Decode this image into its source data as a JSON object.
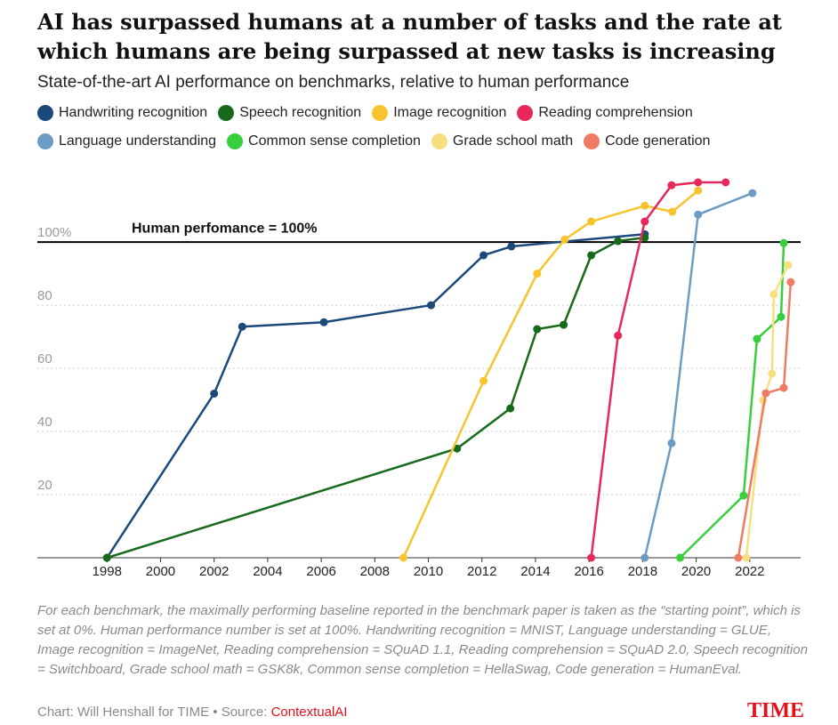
{
  "chart_data": {
    "type": "line",
    "title": "AI has surpassed humans at a number of tasks and the rate at which humans are being surpassed at new tasks is increasing",
    "subtitle": "State-of-the-art AI performance on benchmarks, relative to human performance",
    "xlim": [
      1995.4,
      2023.9
    ],
    "xticks": [
      1998,
      2000,
      2002,
      2004,
      2006,
      2008,
      2010,
      2012,
      2014,
      2016,
      2018,
      2020,
      2022
    ],
    "ylim": [
      0,
      122
    ],
    "yticks": [
      20,
      40,
      60,
      80,
      {
        "value": 100,
        "label": "100%"
      }
    ],
    "grid": true,
    "reference_line": {
      "value": 100,
      "label": "Human perfomance = 100%"
    },
    "series": [
      {
        "name": "Handwriting recognition",
        "color": "#1b4a7a",
        "x": [
          1998,
          2002,
          2003.05,
          2006.1,
          2010.1,
          2012.06,
          2013.1,
          2018.08
        ],
        "values": [
          0,
          52,
          73.2,
          74.6,
          80,
          95.8,
          98.6,
          102.5
        ]
      },
      {
        "name": "Speech recognition",
        "color": "#17691c",
        "x": [
          1998,
          2011.07,
          2013.06,
          2014.06,
          2015.05,
          2016.08,
          2017.08,
          2018.08
        ],
        "values": [
          0,
          34.6,
          47.3,
          72.4,
          73.8,
          95.8,
          100.3,
          101.4
        ]
      },
      {
        "name": "Image recognition",
        "color": "#f7c42f",
        "x": [
          2009.07,
          2012.06,
          2014.06,
          2015.09,
          2016.08,
          2018.08,
          2019.11,
          2020.07
        ],
        "values": [
          0,
          56,
          90,
          100.8,
          106.5,
          111.5,
          109.6,
          116.3
        ]
      },
      {
        "name": "Reading comprehension",
        "color": "#e8285a",
        "x": [
          2016.08,
          2017.08,
          2018.08,
          2019.08,
          2020.07,
          2021.1
        ],
        "values": [
          0,
          70.4,
          106.5,
          118,
          118.9,
          118.9
        ]
      },
      {
        "name": "Language understanding",
        "color": "#6c9cc4",
        "x": [
          2018.08,
          2019.08,
          2020.07,
          2022.1
        ],
        "values": [
          0,
          36.3,
          108.7,
          115.5
        ]
      },
      {
        "name": "Common sense completion",
        "color": "#37cf3c",
        "x": [
          2019.4,
          2021.77,
          2022.27,
          2023.17,
          2023.27
        ],
        "values": [
          0,
          19.7,
          69.3,
          76.3,
          99.7
        ]
      },
      {
        "name": "Grade school math",
        "color": "#f7df80",
        "x": [
          2021.87,
          2022.5,
          2022.83,
          2022.9,
          2023.43
        ],
        "values": [
          0,
          49.9,
          58.3,
          83.4,
          92.7
        ]
      },
      {
        "name": "Code generation",
        "color": "#f07b65",
        "x": [
          2021.57,
          2022.6,
          2023.27,
          2023.53
        ],
        "values": [
          0,
          52.1,
          53.8,
          87.3
        ]
      }
    ],
    "footnote": "For each benchmark, the maximally performing baseline reported in the benchmark paper is taken as the “starting point”, which is set at 0%. Human performance number is set at 100%. Handwriting recognition = MNIST, Language understanding = GLUE, Image recognition = ImageNet, Reading comprehension = SQuAD 1.1, Reading comprehension = SQuAD 2.0, Speech recognition = Switchboard, Grade school math = GSK8k, Common sense completion = HellaSwag, Code generation = HumanEval.",
    "credit": "Chart: Will Henshall for TIME • Source: ",
    "source": "ContextualAI",
    "logo": "TIME"
  }
}
